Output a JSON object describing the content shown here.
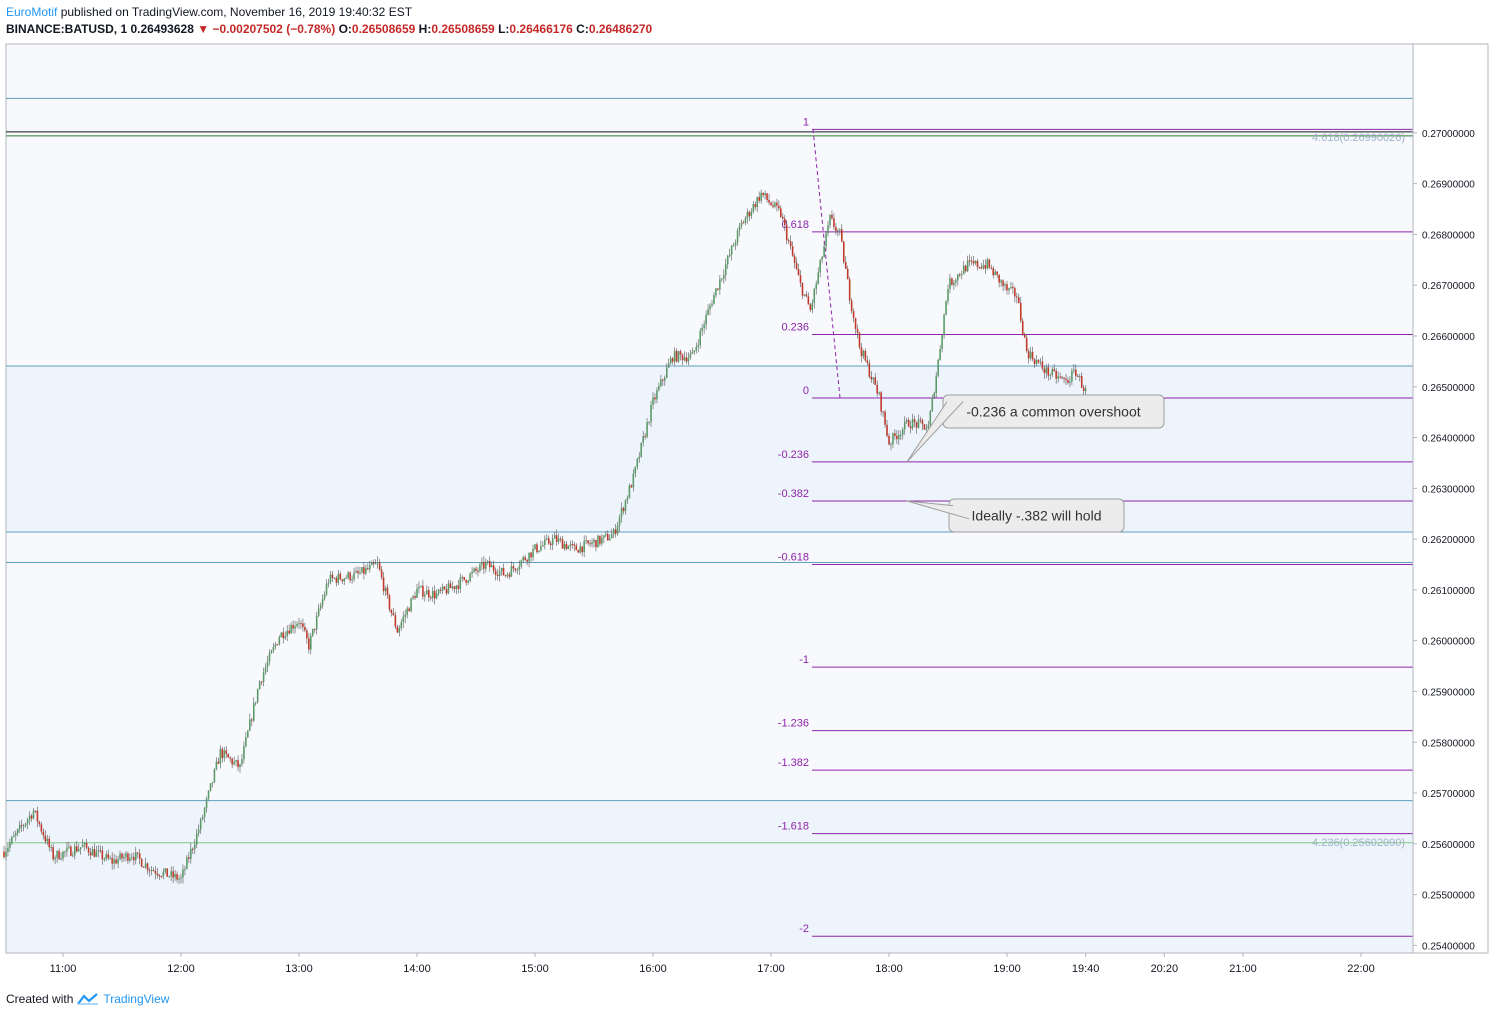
{
  "header": {
    "user": "EuroMotif",
    "published": " published on TradingView.com, November 16, 2019 19:40:32 EST",
    "symbol": "BINANCE:BATUSD, 1",
    "last": "0.26493628",
    "change": "−0.00207502 (−0.78%)",
    "o_label": "O:",
    "o": "0.26508659",
    "h_label": "H:",
    "h": "0.26508659",
    "l_label": "L:",
    "l": "0.26466176",
    "c_label": "C:",
    "c": "0.26486270"
  },
  "footer": {
    "created": "Created with",
    "brand": "TradingView"
  },
  "colors": {
    "up": "#5b9a68",
    "down": "#c0392b",
    "fib": "#8e24aa",
    "hline": "#5f9fbe",
    "zone": "#eef4fb",
    "bg": "#f7f9fd"
  },
  "chart_data": {
    "type": "candlestick",
    "title": "BINANCE:BATUSD, 1",
    "x_ticks": [
      "11:00",
      "12:00",
      "13:00",
      "14:00",
      "15:00",
      "16:00",
      "17:00",
      "18:00",
      "19:00",
      "19:40",
      "20:20",
      "21:00",
      "22:00"
    ],
    "y_ticks": [
      "0.27000000",
      "0.26900000",
      "0.26800000",
      "0.26700000",
      "0.26600000",
      "0.26500000",
      "0.26400000",
      "0.26300000",
      "0.26200000",
      "0.26100000",
      "0.26000000",
      "0.25900000",
      "0.25800000",
      "0.25700000",
      "0.25600000",
      "0.25500000",
      "0.25400000"
    ],
    "ylim": [
      0.25385,
      0.27175
    ],
    "horizontal_lines": [
      0.27068,
      0.26994,
      0.26541,
      0.26214,
      0.26154,
      0.25685,
      0.25602
    ],
    "fib_levels": [
      {
        "label": "1",
        "value": 0.27007
      },
      {
        "label": "0.618",
        "value": 0.26805
      },
      {
        "label": "0.236",
        "value": 0.26603
      },
      {
        "label": "0",
        "value": 0.26478
      },
      {
        "label": "-0.236",
        "value": 0.26352
      },
      {
        "label": "-0.382",
        "value": 0.26275
      },
      {
        "label": "-0.618",
        "value": 0.2615
      },
      {
        "label": "-1",
        "value": 0.25948
      },
      {
        "label": "-1.236",
        "value": 0.25823
      },
      {
        "label": "-1.382",
        "value": 0.25745
      },
      {
        "label": "-1.618",
        "value": 0.2562
      },
      {
        "label": "-2",
        "value": 0.25418
      }
    ],
    "right_fib_labels": [
      {
        "label": "4.618(0.26990026)",
        "value": 0.2699
      },
      {
        "label": "4.236(0.25602090)",
        "value": 0.25602
      }
    ],
    "annotations": [
      "-0.236 a common overshoot",
      "Ideally -.382 will hold"
    ],
    "path_points": [
      [
        "10:30",
        0.25585
      ],
      [
        "10:45",
        0.25665
      ],
      [
        "10:55",
        0.25575
      ],
      [
        "11:10",
        0.25595
      ],
      [
        "11:25",
        0.25565
      ],
      [
        "11:35",
        0.2558
      ],
      [
        "11:45",
        0.2555
      ],
      [
        "12:00",
        0.2553
      ],
      [
        "12:10",
        0.2564
      ],
      [
        "12:20",
        0.2578
      ],
      [
        "12:30",
        0.2575
      ],
      [
        "12:40",
        0.2592
      ],
      [
        "12:50",
        0.2601
      ],
      [
        "13:00",
        0.2604
      ],
      [
        "13:05",
        0.2599
      ],
      [
        "13:15",
        0.2612
      ],
      [
        "13:30",
        0.2613
      ],
      [
        "13:40",
        0.2615
      ],
      [
        "13:45",
        0.2608
      ],
      [
        "13:50",
        0.2602
      ],
      [
        "14:00",
        0.261
      ],
      [
        "14:10",
        0.2609
      ],
      [
        "14:20",
        0.2611
      ],
      [
        "14:35",
        0.2615
      ],
      [
        "14:45",
        0.2613
      ],
      [
        "15:00",
        0.2618
      ],
      [
        "15:10",
        0.262
      ],
      [
        "15:20",
        0.2618
      ],
      [
        "15:35",
        0.262
      ],
      [
        "15:40",
        0.2621
      ],
      [
        "15:50",
        0.2632
      ],
      [
        "16:00",
        0.2647
      ],
      [
        "16:10",
        0.2656
      ],
      [
        "16:20",
        0.2656
      ],
      [
        "16:30",
        0.2667
      ],
      [
        "16:45",
        0.2682
      ],
      [
        "16:55",
        0.2688
      ],
      [
        "17:05",
        0.2684
      ],
      [
        "17:15",
        0.267
      ],
      [
        "17:20",
        0.2665
      ],
      [
        "17:25",
        0.2674
      ],
      [
        "17:30",
        0.2683
      ],
      [
        "17:35",
        0.268
      ],
      [
        "17:40",
        0.2668
      ],
      [
        "17:45",
        0.2658
      ],
      [
        "17:55",
        0.2648
      ],
      [
        "18:00",
        0.2639
      ],
      [
        "18:10",
        0.2643
      ],
      [
        "18:20",
        0.2642
      ],
      [
        "18:25",
        0.2655
      ],
      [
        "18:30",
        0.267
      ],
      [
        "18:40",
        0.2674
      ],
      [
        "18:50",
        0.2674
      ],
      [
        "19:00",
        0.2669
      ],
      [
        "19:05",
        0.2668
      ],
      [
        "19:10",
        0.2657
      ],
      [
        "19:20",
        0.2653
      ],
      [
        "19:30",
        0.2651
      ],
      [
        "19:35",
        0.2653
      ],
      [
        "19:40",
        0.2649
      ]
    ]
  }
}
